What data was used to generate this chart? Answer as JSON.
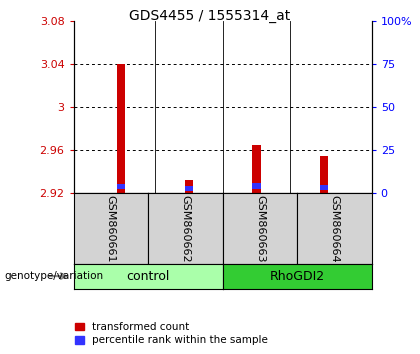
{
  "title": "GDS4455 / 1555314_at",
  "samples": [
    "GSM860661",
    "GSM860662",
    "GSM860663",
    "GSM860664"
  ],
  "group_labels": [
    "control",
    "RhoGDI2"
  ],
  "ylim_left": [
    2.92,
    3.08
  ],
  "yticks_left": [
    2.92,
    2.96,
    3.0,
    3.04,
    3.08
  ],
  "ytick_labels_left": [
    "2.92",
    "2.96",
    "3",
    "3.04",
    "3.08"
  ],
  "ylim_right": [
    0,
    100
  ],
  "yticks_right": [
    0,
    25,
    50,
    75,
    100
  ],
  "ytick_labels_right": [
    "0",
    "25",
    "50",
    "75",
    "100%"
  ],
  "baseline": 2.92,
  "red_tops": [
    3.04,
    2.932,
    2.965,
    2.954
  ],
  "blue_tops": [
    2.928,
    2.926,
    2.929,
    2.927
  ],
  "blue_bottoms": [
    2.924,
    2.922,
    2.924,
    2.923
  ],
  "red_color": "#CC0000",
  "blue_color": "#3333FF",
  "bar_width": 0.12,
  "bg_sample_row": "#D3D3D3",
  "bg_group_control": "#AAFFAA",
  "bg_group_rho": "#33CC33",
  "legend_red_label": "transformed count",
  "legend_blue_label": "percentile rank within the sample",
  "left_label": "genotype/variation",
  "title_fontsize": 10,
  "tick_fontsize": 8,
  "sample_fontsize": 8,
  "group_fontsize": 9,
  "legend_fontsize": 7.5
}
